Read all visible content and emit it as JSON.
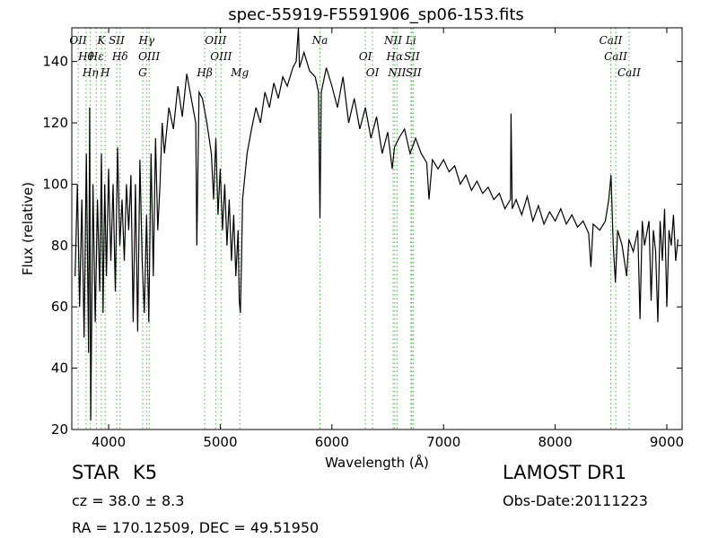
{
  "chart_data": {
    "type": "line",
    "title": "spec-55919-F5591906_sp06-153.fits",
    "x_label": "Wavelength (Å)",
    "y_label": "Flux (relative)",
    "xlim": [
      3670,
      9137
    ],
    "ylim": [
      20,
      151
    ],
    "xticks": [
      4000,
      5000,
      6000,
      7000,
      8000,
      9000
    ],
    "yticks": [
      20,
      40,
      60,
      80,
      100,
      120,
      140
    ],
    "x": [
      3700,
      3720,
      3740,
      3760,
      3780,
      3800,
      3820,
      3830,
      3840,
      3860,
      3880,
      3900,
      3920,
      3935,
      3950,
      3965,
      3980,
      4000,
      4020,
      4040,
      4060,
      4080,
      4100,
      4120,
      4140,
      4160,
      4180,
      4200,
      4220,
      4240,
      4260,
      4280,
      4300,
      4320,
      4340,
      4360,
      4380,
      4400,
      4420,
      4440,
      4460,
      4480,
      4500,
      4540,
      4580,
      4620,
      4660,
      4700,
      4740,
      4780,
      4790,
      4810,
      4840,
      4880,
      4920,
      4940,
      4960,
      4980,
      5000,
      5020,
      5040,
      5060,
      5080,
      5100,
      5120,
      5140,
      5160,
      5170,
      5180,
      5190,
      5200,
      5240,
      5280,
      5320,
      5360,
      5400,
      5440,
      5480,
      5520,
      5560,
      5600,
      5650,
      5680,
      5700,
      5710,
      5750,
      5800,
      5850,
      5880,
      5893,
      5905,
      5950,
      6000,
      6050,
      6100,
      6150,
      6200,
      6250,
      6300,
      6350,
      6400,
      6450,
      6500,
      6540,
      6560,
      6600,
      6650,
      6700,
      6750,
      6800,
      6850,
      6870,
      6900,
      6950,
      7000,
      7050,
      7100,
      7150,
      7200,
      7250,
      7300,
      7350,
      7400,
      7450,
      7500,
      7550,
      7600,
      7605,
      7615,
      7650,
      7700,
      7750,
      7800,
      7850,
      7900,
      7950,
      8000,
      8050,
      8100,
      8150,
      8200,
      8250,
      8300,
      8320,
      8340,
      8400,
      8450,
      8480,
      8500,
      8520,
      8540,
      8560,
      8600,
      8640,
      8660,
      8700,
      8740,
      8760,
      8780,
      8800,
      8840,
      8860,
      8880,
      8900,
      8920,
      8940,
      8960,
      8980,
      9000,
      9020,
      9040,
      9060,
      9080,
      9100
    ],
    "series": [
      {
        "name": "Flux",
        "color": "#000000",
        "values": [
          70,
          100,
          60,
          95,
          50,
          110,
          45,
          125,
          23,
          100,
          55,
          95,
          65,
          110,
          58,
          100,
          70,
          105,
          75,
          100,
          65,
          112,
          80,
          95,
          75,
          100,
          85,
          103,
          55,
          100,
          52,
          108,
          75,
          58,
          90,
          55,
          110,
          70,
          115,
          85,
          100,
          120,
          110,
          125,
          118,
          132,
          122,
          136,
          128,
          120,
          80,
          130,
          128,
          120,
          110,
          95,
          115,
          90,
          105,
          85,
          100,
          80,
          95,
          75,
          90,
          70,
          85,
          62,
          58,
          75,
          95,
          110,
          118,
          125,
          120,
          130,
          125,
          133,
          128,
          135,
          132,
          138,
          140,
          151,
          138,
          143,
          137,
          135,
          130,
          89,
          130,
          138,
          132,
          125,
          135,
          120,
          128,
          118,
          125,
          115,
          122,
          110,
          117,
          105,
          112,
          115,
          118,
          110,
          115,
          110,
          107,
          95,
          108,
          105,
          108,
          104,
          106,
          100,
          103,
          98,
          101,
          97,
          99,
          95,
          97,
          92,
          95,
          123,
          92,
          95,
          90,
          96,
          88,
          93,
          87,
          91,
          88,
          92,
          87,
          90,
          86,
          88,
          84,
          73,
          87,
          85,
          88,
          95,
          103,
          80,
          68,
          85,
          80,
          70,
          82,
          78,
          85,
          56,
          88,
          80,
          88,
          62,
          85,
          78,
          55,
          88,
          75,
          92,
          60,
          85,
          80,
          90,
          75,
          82
        ]
      }
    ],
    "line_annotations": {
      "color": "#4daf4a",
      "lines": [
        {
          "label": "OII",
          "x": 3727
        },
        {
          "label": "Hθ",
          "x": 3798
        },
        {
          "label": "Hη",
          "x": 3836
        },
        {
          "label": "K",
          "x": 3934
        },
        {
          "label": "Hε",
          "x": 3889
        },
        {
          "label": "H",
          "x": 3969
        },
        {
          "label": "SII",
          "x": 4072
        },
        {
          "label": "Hδ",
          "x": 4102
        },
        {
          "label": "G",
          "x": 4305
        },
        {
          "label": "Hγ",
          "x": 4340
        },
        {
          "label": "OIII",
          "x": 4363
        },
        {
          "label": "Hβ",
          "x": 4861
        },
        {
          "label": "OIII",
          "x": 4959
        },
        {
          "label": "OIII",
          "x": 5007
        },
        {
          "label": "Mg",
          "x": 5175
        },
        {
          "label": "Na",
          "x": 5893
        },
        {
          "label": "OI",
          "x": 6300
        },
        {
          "label": "OI",
          "x": 6364
        },
        {
          "label": "NII",
          "x": 6548
        },
        {
          "label": "Hα",
          "x": 6563
        },
        {
          "label": "NII",
          "x": 6583
        },
        {
          "label": "Li",
          "x": 6708
        },
        {
          "label": "SII",
          "x": 6716
        },
        {
          "label": "SII",
          "x": 6731
        },
        {
          "label": "CaII",
          "x": 8498
        },
        {
          "label": "CaII",
          "x": 8542
        },
        {
          "label": "CaII",
          "x": 8662
        }
      ]
    }
  },
  "info": {
    "object_class": "STAR",
    "subclass": "K5",
    "cz": "cz = 38.0 ± 8.3",
    "coords": "RA = 170.12509, DEC = 49.51950",
    "survey": "LAMOST DR1",
    "obs_date": "Obs-Date:20111223"
  }
}
